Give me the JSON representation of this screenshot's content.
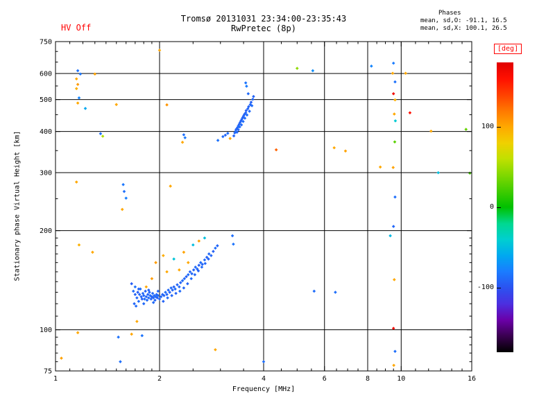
{
  "header": {
    "hv_label": "HV Off",
    "title": "Tromsø 20131031 23:34:00-23:35:43",
    "subtitle": "RwPretec (8p)",
    "stats_title": "Phases",
    "stats_line_o": "mean, sd,O: -91.1, 16.5",
    "stats_line_x": "mean, sd,X: 100.1, 26.5"
  },
  "colors": {
    "accent_red": "#ff0000",
    "axis": "#000000",
    "background": "#ffffff"
  },
  "chart_data": {
    "type": "scatter",
    "title": "Tromsø 20131031 23:34:00-23:35:43",
    "subtitle": "RwPretec (8p)",
    "xlabel": "Frequency [MHz]",
    "ylabel": "Stationary phase Virtual Height [km]",
    "xscale": "log",
    "yscale": "log",
    "xlim": [
      1,
      16
    ],
    "ylim": [
      75,
      750
    ],
    "xticks": [
      1,
      2,
      4,
      6,
      8,
      10,
      16
    ],
    "yticks": [
      750,
      600,
      500,
      400,
      300,
      200,
      100,
      75
    ],
    "xminor": [
      1.1,
      1.2,
      1.3,
      1.4,
      1.5,
      1.6,
      1.7,
      1.8,
      1.9,
      2.5,
      3,
      3.5,
      4.5,
      5,
      5.5,
      6.5,
      7,
      7.5,
      8.5,
      9,
      9.5,
      11,
      12,
      13,
      14,
      15
    ],
    "yminor": [
      80,
      85,
      90,
      95,
      110,
      120,
      130,
      140,
      150,
      160,
      170,
      180,
      190,
      250,
      350,
      450,
      550,
      650,
      700
    ],
    "grid": true,
    "colorbar": {
      "label": "[deg]",
      "range": [
        -180,
        180
      ],
      "ticks": [
        100,
        0,
        -100
      ],
      "stops": [
        [
          -180,
          "#000000"
        ],
        [
          -160,
          "#3a0050"
        ],
        [
          -140,
          "#6a00a8"
        ],
        [
          -120,
          "#4b2fe0"
        ],
        [
          -100,
          "#2b52f0"
        ],
        [
          -80,
          "#1a7cff"
        ],
        [
          -60,
          "#00a8f0"
        ],
        [
          -40,
          "#00cfd0"
        ],
        [
          -20,
          "#00d890"
        ],
        [
          0,
          "#00c000"
        ],
        [
          20,
          "#40cc00"
        ],
        [
          40,
          "#80d800"
        ],
        [
          60,
          "#c0e000"
        ],
        [
          80,
          "#f0d000"
        ],
        [
          100,
          "#ffa800"
        ],
        [
          120,
          "#ff7800"
        ],
        [
          140,
          "#ff4000"
        ],
        [
          160,
          "#ff1000"
        ],
        [
          180,
          "#e00000"
        ]
      ]
    },
    "points": [
      [
        1.66,
        138,
        -95
      ],
      [
        1.68,
        131,
        -88
      ],
      [
        1.7,
        128,
        -92
      ],
      [
        1.7,
        135,
        -85
      ],
      [
        1.72,
        125,
        -90
      ],
      [
        1.73,
        130,
        -95
      ],
      [
        1.74,
        122,
        -88
      ],
      [
        1.75,
        128,
        -92
      ],
      [
        1.76,
        133,
        -86
      ],
      [
        1.77,
        126,
        -90
      ],
      [
        1.78,
        124,
        -94
      ],
      [
        1.79,
        129,
        -89
      ],
      [
        1.8,
        127,
        -91
      ],
      [
        1.81,
        124,
        -87
      ],
      [
        1.82,
        131,
        -93
      ],
      [
        1.83,
        126,
        -90
      ],
      [
        1.84,
        123,
        -88
      ],
      [
        1.85,
        128,
        -92
      ],
      [
        1.86,
        125,
        -89
      ],
      [
        1.87,
        130,
        -91
      ],
      [
        1.88,
        127,
        -86
      ],
      [
        1.89,
        124,
        -90
      ],
      [
        1.9,
        126,
        -93
      ],
      [
        1.91,
        129,
        -88
      ],
      [
        1.92,
        125,
        -91
      ],
      [
        1.93,
        127,
        -89
      ],
      [
        1.94,
        123,
        -92
      ],
      [
        1.95,
        126,
        -87
      ],
      [
        1.96,
        128,
        -90
      ],
      [
        1.97,
        125,
        -93
      ],
      [
        1.98,
        127,
        -88
      ],
      [
        2.0,
        124,
        -91
      ],
      [
        2.02,
        126,
        -89
      ],
      [
        2.04,
        128,
        -92
      ],
      [
        2.06,
        127,
        -90
      ],
      [
        2.08,
        130,
        -87
      ],
      [
        2.1,
        128,
        -91
      ],
      [
        2.12,
        132,
        -89
      ],
      [
        2.14,
        130,
        -92
      ],
      [
        2.16,
        134,
        -88
      ],
      [
        2.18,
        132,
        -90
      ],
      [
        2.2,
        135,
        -93
      ],
      [
        2.22,
        133,
        -87
      ],
      [
        2.25,
        137,
        -91
      ],
      [
        2.28,
        135,
        -89
      ],
      [
        2.3,
        139,
        -92
      ],
      [
        2.33,
        141,
        -88
      ],
      [
        2.36,
        143,
        -90
      ],
      [
        2.39,
        145,
        -93
      ],
      [
        2.42,
        147,
        -87
      ],
      [
        2.45,
        150,
        -91
      ],
      [
        2.48,
        148,
        -89
      ],
      [
        2.51,
        152,
        -92
      ],
      [
        2.54,
        155,
        -88
      ],
      [
        2.57,
        153,
        -90
      ],
      [
        2.6,
        157,
        -93
      ],
      [
        2.63,
        160,
        -87
      ],
      [
        2.66,
        158,
        -91
      ],
      [
        2.7,
        163,
        -89
      ],
      [
        2.74,
        166,
        -92
      ],
      [
        2.78,
        170,
        -88
      ],
      [
        2.82,
        168,
        -90
      ],
      [
        2.86,
        173,
        -93
      ],
      [
        2.9,
        177,
        -87
      ],
      [
        2.94,
        180,
        -91
      ],
      [
        1.69,
        120,
        -90
      ],
      [
        1.71,
        118,
        -88
      ],
      [
        1.74,
        133,
        -91
      ],
      [
        1.8,
        120,
        -89
      ],
      [
        1.86,
        132,
        -92
      ],
      [
        1.92,
        121,
        -88
      ],
      [
        1.98,
        131,
        -90
      ],
      [
        2.05,
        122,
        -92
      ],
      [
        2.11,
        125,
        -88
      ],
      [
        2.17,
        127,
        -90
      ],
      [
        2.23,
        129,
        -92
      ],
      [
        2.29,
        131,
        -88
      ],
      [
        2.35,
        134,
        -90
      ],
      [
        2.41,
        138,
        -92
      ],
      [
        2.47,
        143,
        -88
      ],
      [
        2.53,
        147,
        -90
      ],
      [
        2.59,
        151,
        -92
      ],
      [
        2.65,
        155,
        -88
      ],
      [
        2.71,
        159,
        -90
      ],
      [
        2.77,
        164,
        -92
      ],
      [
        1.83,
        135,
        100
      ],
      [
        1.95,
        160,
        105
      ],
      [
        2.05,
        168,
        98
      ],
      [
        2.2,
        164,
        -45
      ],
      [
        2.35,
        172,
        102
      ],
      [
        2.42,
        160,
        100
      ],
      [
        2.5,
        181,
        -50
      ],
      [
        2.6,
        186,
        103
      ],
      [
        2.28,
        152,
        100
      ],
      [
        2.7,
        190,
        -48
      ],
      [
        2.1,
        150,
        100
      ],
      [
        1.9,
        143,
        105
      ],
      [
        3.3,
        396,
        -90
      ],
      [
        3.32,
        401,
        -87
      ],
      [
        3.33,
        406,
        -92
      ],
      [
        3.35,
        398,
        -89
      ],
      [
        3.36,
        411,
        -91
      ],
      [
        3.38,
        416,
        -88
      ],
      [
        3.38,
        405,
        -90
      ],
      [
        3.4,
        421,
        -93
      ],
      [
        3.41,
        413,
        -87
      ],
      [
        3.42,
        426,
        -90
      ],
      [
        3.44,
        431,
        -92
      ],
      [
        3.45,
        419,
        -88
      ],
      [
        3.46,
        436,
        -90
      ],
      [
        3.48,
        441,
        -93
      ],
      [
        3.49,
        429,
        -87
      ],
      [
        3.5,
        446,
        -90
      ],
      [
        3.52,
        451,
        -92
      ],
      [
        3.53,
        439,
        -88
      ],
      [
        3.55,
        456,
        -90
      ],
      [
        3.56,
        463,
        -93
      ],
      [
        3.58,
        449,
        -87
      ],
      [
        3.6,
        469,
        -90
      ],
      [
        3.62,
        476,
        -92
      ],
      [
        3.64,
        461,
        -88
      ],
      [
        3.66,
        483,
        -90
      ],
      [
        3.68,
        491,
        -93
      ],
      [
        3.7,
        479,
        -87
      ],
      [
        3.72,
        501,
        -90
      ],
      [
        3.74,
        511,
        -92
      ],
      [
        3.61,
        521,
        -88
      ],
      [
        3.2,
        381,
        100
      ],
      [
        3.05,
        386,
        -88
      ],
      [
        2.95,
        376,
        -85
      ],
      [
        3.1,
        390,
        -90
      ],
      [
        3.15,
        395,
        -87
      ],
      [
        3.28,
        388,
        -91
      ],
      [
        1.16,
        612,
        -85
      ],
      [
        1.18,
        598,
        -82
      ],
      [
        1.15,
        578,
        100
      ],
      [
        1.16,
        556,
        106
      ],
      [
        1.15,
        540,
        96
      ],
      [
        1.17,
        506,
        -76
      ],
      [
        1.16,
        488,
        100
      ],
      [
        1.22,
        470,
        -60
      ],
      [
        1.15,
        281,
        100
      ],
      [
        1.28,
        172,
        100
      ],
      [
        1.17,
        181,
        96
      ],
      [
        1.16,
        98,
        100
      ],
      [
        1.04,
        82,
        103
      ],
      [
        1.3,
        598,
        102
      ],
      [
        1.5,
        483,
        100
      ],
      [
        1.35,
        394,
        -86
      ],
      [
        1.37,
        387,
        55
      ],
      [
        1.57,
        276,
        -82
      ],
      [
        1.58,
        263,
        -86
      ],
      [
        1.6,
        251,
        -78
      ],
      [
        1.56,
        232,
        100
      ],
      [
        1.78,
        96,
        -84
      ],
      [
        1.72,
        106,
        100
      ],
      [
        1.52,
        95,
        -85
      ],
      [
        1.66,
        97,
        101
      ],
      [
        1.54,
        80,
        -86
      ],
      [
        2.1,
        482,
        108
      ],
      [
        2.15,
        273,
        100
      ],
      [
        2.35,
        391,
        -86
      ],
      [
        2.37,
        383,
        -81
      ],
      [
        2.33,
        371,
        100
      ],
      [
        2.0,
        706,
        100
      ],
      [
        2.9,
        87,
        100
      ],
      [
        3.25,
        193,
        -86
      ],
      [
        3.27,
        182,
        -84
      ],
      [
        3.55,
        562,
        -84
      ],
      [
        3.57,
        549,
        -80
      ],
      [
        4.0,
        80,
        -86
      ],
      [
        4.35,
        352,
        128
      ],
      [
        5.0,
        622,
        45
      ],
      [
        5.55,
        612,
        -72
      ],
      [
        5.6,
        131,
        -87
      ],
      [
        6.45,
        130,
        -86
      ],
      [
        6.4,
        357,
        100
      ],
      [
        6.9,
        349,
        102
      ],
      [
        8.2,
        632,
        -76
      ],
      [
        8.7,
        312,
        100
      ],
      [
        9.5,
        645,
        -80
      ],
      [
        9.45,
        601,
        100
      ],
      [
        9.6,
        566,
        -85
      ],
      [
        9.5,
        521,
        168
      ],
      [
        9.6,
        499,
        96
      ],
      [
        9.55,
        452,
        100
      ],
      [
        9.62,
        431,
        -42
      ],
      [
        9.58,
        372,
        28
      ],
      [
        9.48,
        311,
        102
      ],
      [
        9.6,
        253,
        -86
      ],
      [
        9.5,
        206,
        -90
      ],
      [
        9.3,
        193,
        -52
      ],
      [
        9.55,
        142,
        100
      ],
      [
        9.5,
        101,
        170
      ],
      [
        9.6,
        86,
        -86
      ],
      [
        9.52,
        78,
        100
      ],
      [
        10.3,
        601,
        100
      ],
      [
        10.6,
        456,
        160
      ],
      [
        12.2,
        401,
        100
      ],
      [
        12.8,
        300,
        -48
      ],
      [
        15.4,
        406,
        32
      ],
      [
        15.8,
        299,
        22
      ]
    ]
  }
}
